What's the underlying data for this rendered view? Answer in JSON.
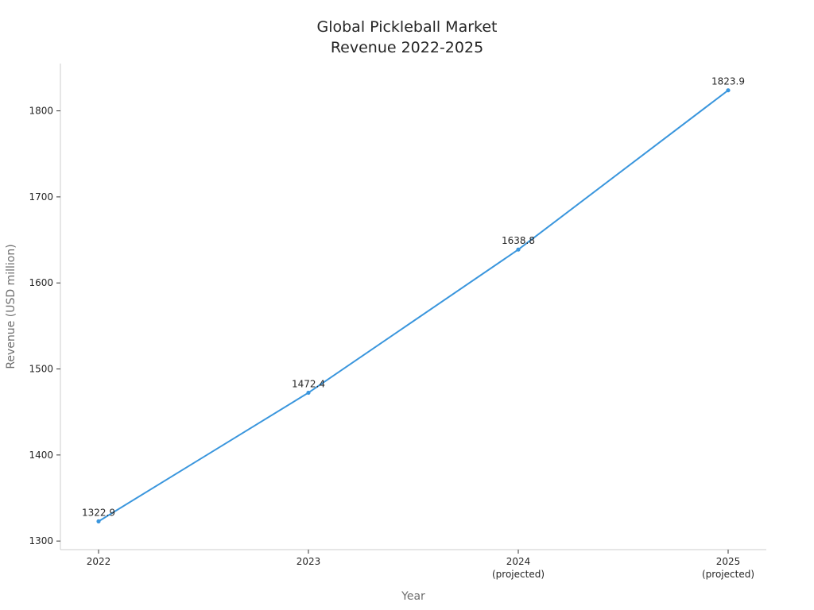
{
  "chart_data": {
    "type": "line",
    "title_lines": [
      "Global Pickleball Market",
      "Revenue 2022-2025"
    ],
    "xlabel": "Year",
    "ylabel": "Revenue (USD million)",
    "categories": [
      {
        "year": "2022",
        "note": ""
      },
      {
        "year": "2023",
        "note": ""
      },
      {
        "year": "2024",
        "note": "(projected)"
      },
      {
        "year": "2025",
        "note": "(projected)"
      }
    ],
    "series": [
      {
        "values": [
          1322.9,
          1472.4,
          1638.8,
          1823.9
        ]
      }
    ],
    "data_labels": [
      "1322.9",
      "1472.4",
      "1638.8",
      "1823.9"
    ],
    "ylim": [
      1290,
      1855
    ],
    "yticks": [
      1300,
      1400,
      1500,
      1600,
      1700,
      1800
    ],
    "grid": false,
    "line_color": "#3a96dd"
  }
}
